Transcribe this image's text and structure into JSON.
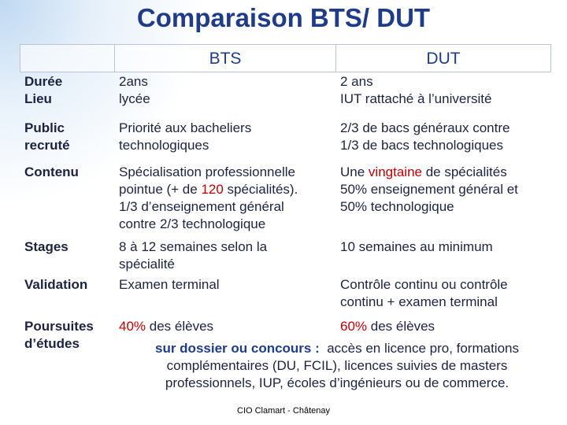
{
  "title": "Comparaison BTS/ DUT",
  "table": {
    "header": [
      "BTS",
      "DUT"
    ],
    "rows": [
      {
        "label": [
          [
            "Durée"
          ],
          [
            "Lieu"
          ]
        ],
        "bts": [
          [
            "2ans"
          ],
          [
            "lycée"
          ]
        ],
        "dut": [
          [
            "2 ans"
          ],
          [
            "IUT rattaché à l’université"
          ]
        ]
      },
      {
        "label": [
          [
            "Public"
          ],
          [
            "recruté"
          ]
        ],
        "bts": [
          [
            "Priorité aux bacheliers"
          ],
          [
            "technologiques"
          ]
        ],
        "dut": [
          [
            "2/3 de bacs généraux contre"
          ],
          [
            "1/3 de bacs technologiques"
          ]
        ]
      },
      {
        "label": [
          [
            "Contenu"
          ]
        ],
        "bts": [
          [
            "Spécialisation professionnelle"
          ],
          [
            "pointue (+ de ",
            {
              "text": "120",
              "color": "#c00000"
            },
            " spécialités)."
          ],
          [
            "1/3 d’enseignement général"
          ],
          [
            "contre 2/3 technologique"
          ]
        ],
        "dut": [
          [
            "Une ",
            {
              "text": "vingtaine",
              "color": "#c00000"
            },
            " de spécialités"
          ],
          [
            "50% enseignement général et"
          ],
          [
            "50% technologique"
          ]
        ]
      },
      {
        "label": [
          [
            "Stages"
          ]
        ],
        "bts": [
          [
            "8 à 12 semaines selon la"
          ],
          [
            "spécialité"
          ]
        ],
        "dut": [
          [
            "10 semaines au minimum"
          ]
        ]
      },
      {
        "label": [
          [
            "Validation"
          ]
        ],
        "bts": [
          [
            "Examen terminal"
          ]
        ],
        "dut": [
          [
            "Contrôle continu ou contrôle"
          ],
          [
            "continu + examen terminal"
          ]
        ]
      }
    ],
    "poursuites": {
      "label": [
        [
          "Poursuites"
        ],
        [
          "d’études"
        ]
      ],
      "bts": [
        [
          {
            "text": "40%",
            "color": "#c00000"
          },
          " des élèves"
        ]
      ],
      "dut": [
        [
          {
            "text": "60%",
            "color": "#c00000"
          },
          " des élèves"
        ]
      ],
      "common": [
        [
          {
            "text": "sur dossier ou concours :",
            "color": "#1f3c88",
            "bold": true
          },
          "  accès en licence pro, formations"
        ],
        [
          "complémentaires (DU, FCIL), licences suivies de masters"
        ],
        [
          "professionnels, IUP, écoles d’ingénieurs ou de commerce."
        ]
      ]
    }
  },
  "footer": "CIO Clamart - Châtenay"
}
